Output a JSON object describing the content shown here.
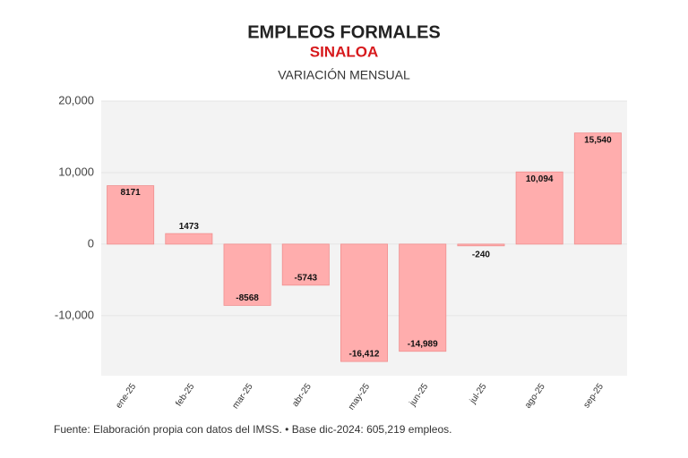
{
  "chart_data": {
    "type": "bar",
    "title": "EMPLEOS FORMALES",
    "subtitle": "SINALOA",
    "caption": "VARIACIÓN MENSUAL",
    "source": "Fuente: Elaboración propia con datos del IMSS. • Base dic-2024: 605,219 empleos.",
    "categories": [
      "ene-25",
      "feb-25",
      "mar-25",
      "abr-25",
      "may-25",
      "jun-25",
      "jul-25",
      "ago-25",
      "sep-25"
    ],
    "values": [
      8171,
      1473,
      -8568,
      -5743,
      -16412,
      -14989,
      -240,
      10094,
      15540
    ],
    "value_labels": [
      "8171",
      "1473",
      "-8568",
      "-5743",
      "-16,412",
      "-14,989",
      "-240",
      "10,094",
      "15,540"
    ],
    "color": "#ffadad",
    "ylim": [
      -18400,
      20000
    ],
    "yticks": [
      {
        "value": 20000,
        "label": "20,000"
      },
      {
        "value": 10000,
        "label": "10,000"
      },
      0,
      {
        "value": -10000,
        "label": "-10,000"
      }
    ],
    "grid": true
  }
}
